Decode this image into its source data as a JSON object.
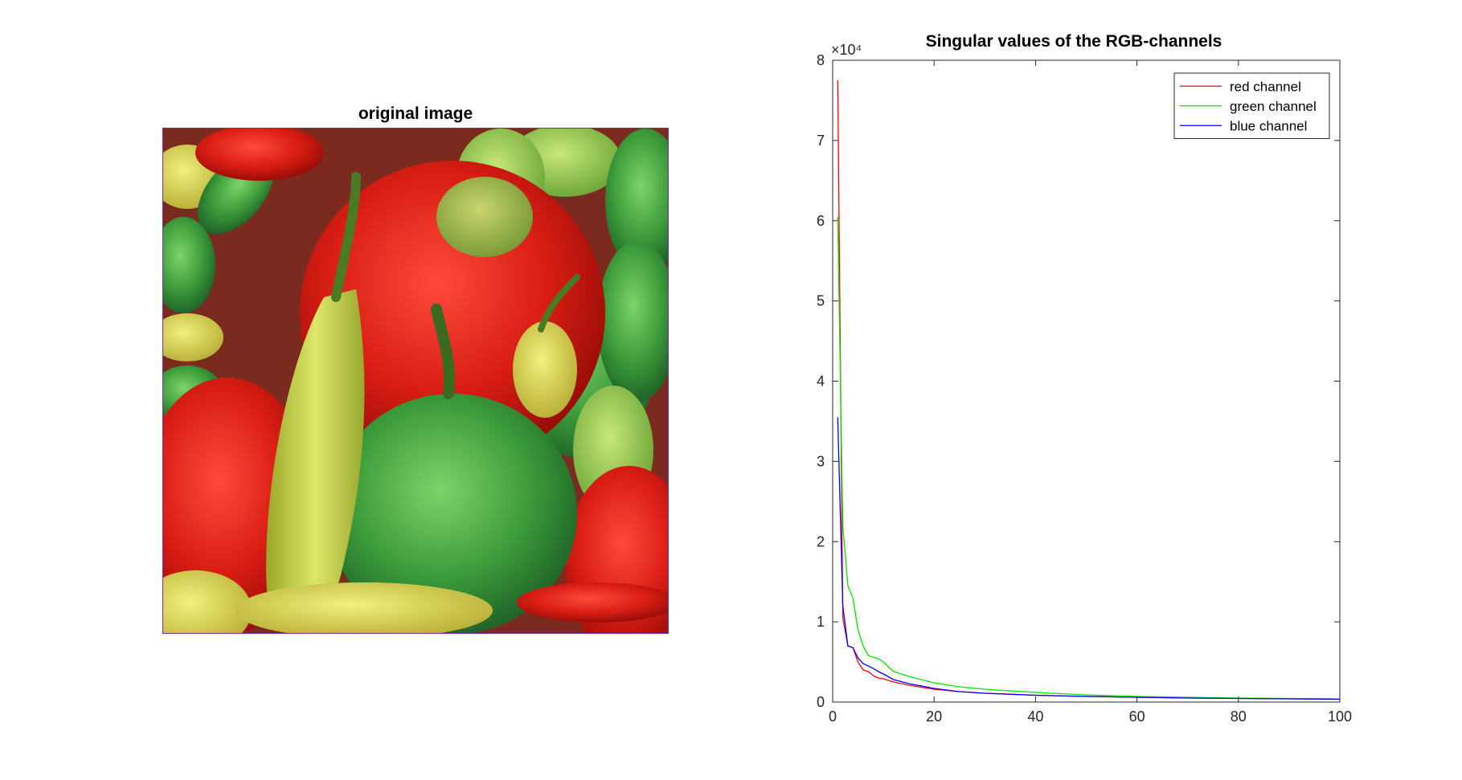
{
  "image_panel": {
    "title": "original image",
    "content": "bell-peppers-photo"
  },
  "chart_data": {
    "type": "line",
    "title": "Singular values of the RGB-channels",
    "xlabel": "",
    "ylabel": "",
    "xlim": [
      0,
      100
    ],
    "ylim": [
      0,
      80000
    ],
    "y_exponent_label": "×10⁴",
    "x_ticks": [
      0,
      20,
      40,
      60,
      80,
      100
    ],
    "y_ticks": [
      0,
      1,
      2,
      3,
      4,
      5,
      6,
      7,
      8
    ],
    "y_tick_scale": 10000,
    "grid": false,
    "legend_position": "top-right",
    "series": [
      {
        "name": "red channel",
        "color": "#ff0000",
        "x": [
          1,
          2,
          3,
          4,
          5,
          6,
          7,
          8,
          9,
          10,
          12,
          15,
          20,
          25,
          30,
          40,
          50,
          60,
          70,
          80,
          90,
          100
        ],
        "y": [
          77500,
          10500,
          7000,
          6800,
          5000,
          4000,
          3800,
          3300,
          3000,
          2900,
          2500,
          2100,
          1600,
          1300,
          1100,
          850,
          700,
          600,
          520,
          460,
          420,
          380
        ]
      },
      {
        "name": "green channel",
        "color": "#00e600",
        "x": [
          1,
          2,
          3,
          4,
          5,
          6,
          7,
          8,
          9,
          10,
          12,
          15,
          20,
          25,
          30,
          40,
          50,
          60,
          70,
          80,
          90,
          100
        ],
        "y": [
          60500,
          22000,
          14500,
          13000,
          9000,
          7000,
          5800,
          5600,
          5400,
          5000,
          3800,
          3200,
          2400,
          1900,
          1600,
          1200,
          900,
          700,
          600,
          500,
          450,
          400
        ]
      },
      {
        "name": "blue channel",
        "color": "#0000ff",
        "x": [
          1,
          2,
          3,
          4,
          5,
          6,
          7,
          8,
          9,
          10,
          12,
          15,
          20,
          25,
          30,
          40,
          50,
          60,
          70,
          80,
          90,
          100
        ],
        "y": [
          35500,
          12000,
          7000,
          6800,
          5500,
          4800,
          4500,
          4200,
          3800,
          3500,
          2800,
          2300,
          1700,
          1300,
          1100,
          850,
          700,
          600,
          500,
          450,
          400,
          350
        ]
      }
    ]
  }
}
